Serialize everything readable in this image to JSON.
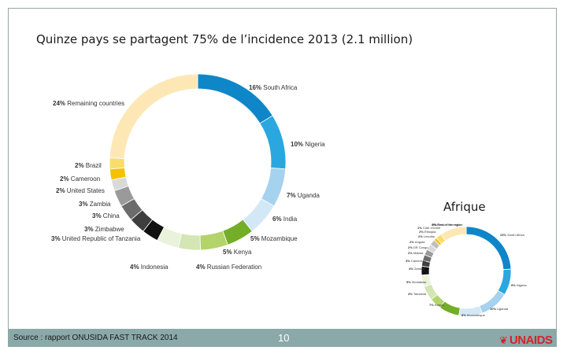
{
  "slide": {
    "title": "Quinze pays se partagent 75% de l’incidence 2013 (2.1 million)",
    "inset_label": "Afrique",
    "source": "Source : rapport ONUSIDA FAST TRACK 2014",
    "page_number": "10",
    "logo_text": "UNAIDS"
  },
  "chart_data": [
    {
      "type": "pie",
      "series": [
        {
          "label": "16% South Africa",
          "pct": "16%",
          "name": "South Africa",
          "value": 16,
          "color": "#0f86c8"
        },
        {
          "label": "10% Nigeria",
          "pct": "10%",
          "name": "Nigeria",
          "value": 10,
          "color": "#2aa7df"
        },
        {
          "label": "7% Uganda",
          "pct": "7%",
          "name": "Uganda",
          "value": 7,
          "color": "#a5d2ee"
        },
        {
          "label": "6% India",
          "pct": "6%",
          "name": "India",
          "value": 6,
          "color": "#d3e8f6"
        },
        {
          "label": "5% Mozambique",
          "pct": "5%",
          "name": "Mozambique",
          "value": 5,
          "color": "#74ad27"
        },
        {
          "label": "5% Kenya",
          "pct": "5%",
          "name": "Kenya",
          "value": 5,
          "color": "#b3d36b"
        },
        {
          "label": "4% Russian Federation",
          "pct": "4%",
          "name": "Russian Federation",
          "value": 4,
          "color": "#d3e6b3"
        },
        {
          "label": "4% Indonesia",
          "pct": "4%",
          "name": "Indonesia",
          "value": 4,
          "color": "#eaf2dc"
        },
        {
          "label": "3% United Republic of Tanzania",
          "pct": "3%",
          "name": "United Republic of Tanzania",
          "value": 3,
          "color": "#111111"
        },
        {
          "label": "3% Zimbabwe",
          "pct": "3%",
          "name": "Zimbabwe",
          "value": 3,
          "color": "#3e3e3e"
        },
        {
          "label": "3% China",
          "pct": "3%",
          "name": "China",
          "value": 3,
          "color": "#6c6c6c"
        },
        {
          "label": "3% Zambia",
          "pct": "3%",
          "name": "Zambia",
          "value": 3,
          "color": "#9a9a9a"
        },
        {
          "label": "2% United States",
          "pct": "2%",
          "name": "United States",
          "value": 2,
          "color": "#d9d9d9"
        },
        {
          "label": "2% Cameroon",
          "pct": "2%",
          "name": "Cameroon",
          "value": 2,
          "color": "#f6c200"
        },
        {
          "label": "2% Brazil",
          "pct": "2%",
          "name": "Brazil",
          "value": 2,
          "color": "#f9dc6b"
        },
        {
          "label": "24% Remaining countries",
          "pct": "24%",
          "name": "Remaining countries",
          "value": 24,
          "color": "#fde8b5"
        }
      ]
    },
    {
      "type": "pie",
      "series": [
        {
          "label": "23% South Africa",
          "pct": "23%",
          "name": "South Africa",
          "value": 23,
          "color": "#0f86c8"
        },
        {
          "label": "9% Nigeria",
          "pct": "9%",
          "name": "Nigeria",
          "value": 9,
          "color": "#2aa7df"
        },
        {
          "label": "10% Uganda",
          "pct": "10%",
          "name": "Uganda",
          "value": 10,
          "color": "#a5d2ee"
        },
        {
          "label": "8% Mozambique",
          "pct": "8%",
          "name": "Mozambique",
          "value": 8,
          "color": "#d3e8f6"
        },
        {
          "label": "7% Kenya",
          "pct": "7%",
          "name": "Kenya",
          "value": 7,
          "color": "#74ad27"
        },
        {
          "label": "4% Tanzania",
          "pct": "4%",
          "name": "Tanzania",
          "value": 4,
          "color": "#b3d36b"
        },
        {
          "label": "5% Zimbabwe",
          "pct": "5%",
          "name": "Zimbabwe",
          "value": 5,
          "color": "#d3e6b3"
        },
        {
          "label": "4% Zambia",
          "pct": "4%",
          "name": "Zambia",
          "value": 4,
          "color": "#eaf2dc"
        },
        {
          "label": "3% Cameroon",
          "pct": "3%",
          "name": "Cameroon",
          "value": 3,
          "color": "#111111"
        },
        {
          "label": "2% Malawi",
          "pct": "2%",
          "name": "Malawi",
          "value": 2,
          "color": "#3e3e3e"
        },
        {
          "label": "2% DR Congo",
          "pct": "2%",
          "name": "DR Congo",
          "value": 2,
          "color": "#6c6c6c"
        },
        {
          "label": "2% Angola",
          "pct": "2%",
          "name": "Angola",
          "value": 2,
          "color": "#9a9a9a"
        },
        {
          "label": "2% Lesotho",
          "pct": "2%",
          "name": "Lesotho",
          "value": 2,
          "color": "#d9d9d9"
        },
        {
          "label": "2% Ethiopia",
          "pct": "2%",
          "name": "Ethiopia",
          "value": 2,
          "color": "#bfbfbf"
        },
        {
          "label": "1% Côte d'Ivoire",
          "pct": "1%",
          "name": "Côte d'Ivoire",
          "value": 1,
          "color": "#f6c200"
        },
        {
          "label": "2% Rest of the region",
          "pct": "2%",
          "name": "Rest of the region",
          "value": 2,
          "color": "#f9dc6b"
        },
        {
          "label": "9% Rest of the region",
          "pct": "9%",
          "name": "Rest of the region",
          "value": 9,
          "color": "#fde8b5"
        }
      ]
    }
  ]
}
